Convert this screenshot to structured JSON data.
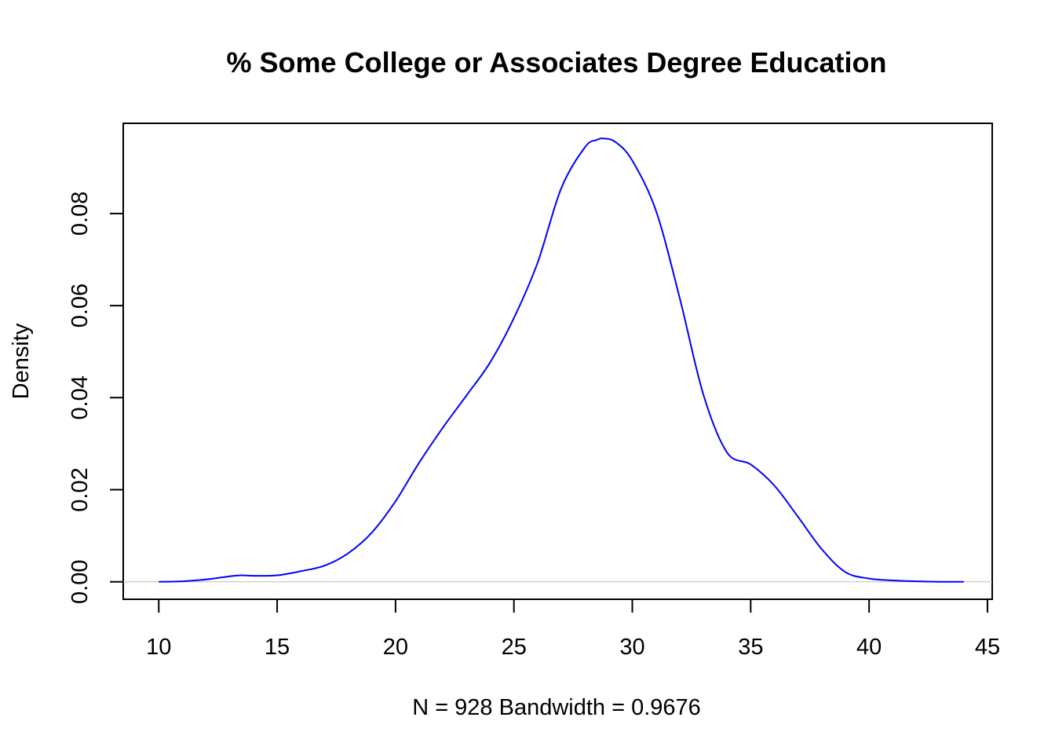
{
  "chart_data": {
    "type": "line",
    "title": "% Some College or Associates Degree Education",
    "xlabel": "N = 928   Bandwidth = 0.9676",
    "ylabel": "Density",
    "xlim": [
      8.5,
      45.2
    ],
    "ylim": [
      -0.0038,
      0.0996
    ],
    "x_ticks": [
      "10",
      "15",
      "20",
      "25",
      "30",
      "35",
      "40",
      "45"
    ],
    "x_tick_values": [
      10,
      15,
      20,
      25,
      30,
      35,
      40,
      45
    ],
    "y_ticks": [
      "0.00",
      "0.02",
      "0.04",
      "0.06",
      "0.08"
    ],
    "y_tick_values": [
      0,
      0.02,
      0.04,
      0.06,
      0.08
    ],
    "grid": false,
    "baseline": 0,
    "series": [
      {
        "color": "#0000ff",
        "x": [
          10.0,
          11.0,
          12.0,
          13.0,
          13.5,
          14.0,
          15.0,
          16.0,
          17.0,
          18.0,
          19.0,
          20.0,
          21.0,
          22.0,
          23.0,
          24.0,
          25.0,
          26.0,
          27.0,
          28.0,
          28.5,
          28.8,
          29.3,
          30.0,
          31.0,
          32.0,
          33.0,
          34.0,
          35.0,
          36.0,
          37.0,
          38.0,
          39.0,
          40.0,
          41.0,
          42.0,
          43.0,
          44.0
        ],
        "y": [
          0.0,
          0.0001,
          0.0005,
          0.0012,
          0.0014,
          0.0013,
          0.0014,
          0.0023,
          0.0035,
          0.0062,
          0.0107,
          0.0175,
          0.0259,
          0.0335,
          0.0405,
          0.0477,
          0.0573,
          0.0693,
          0.0855,
          0.0944,
          0.096,
          0.0963,
          0.0955,
          0.0915,
          0.0806,
          0.0617,
          0.0407,
          0.0281,
          0.0255,
          0.0209,
          0.0141,
          0.0071,
          0.0021,
          0.0007,
          0.0003,
          0.0001,
          0.0,
          0.0
        ]
      }
    ]
  }
}
